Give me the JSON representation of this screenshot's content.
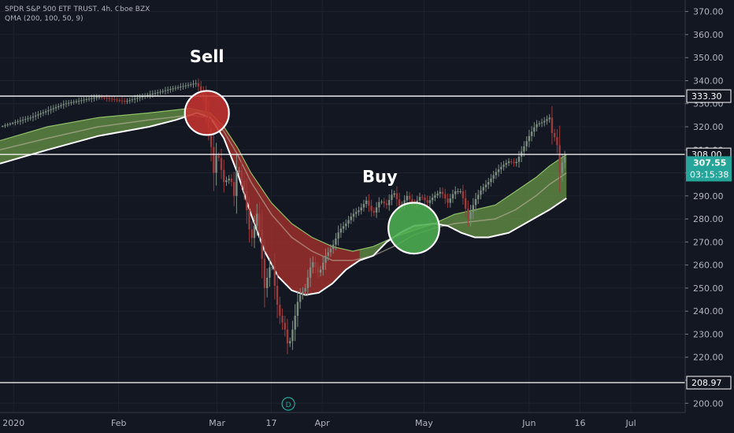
{
  "header": {
    "symbol_line": "SPDR S&P 500 ETF TRUST, 4h, Cboe BZX",
    "indicator_line": "QMA (200, 100, 50, 9)"
  },
  "colors": {
    "background": "#131722",
    "grid": "#1e222d",
    "candle_up": "#7b8c80",
    "candle_down": "#9b3b3b",
    "bull_fill": "#6b9a4a",
    "bear_fill": "#b3322e",
    "line_white": "#ffffff",
    "price_tag": "#26a69a"
  },
  "chart_data": {
    "type": "line",
    "title": "",
    "xlabel": "",
    "ylabel": "",
    "ylim": [
      196,
      375
    ],
    "yticks": [
      200,
      210,
      220,
      230,
      240,
      250,
      260,
      270,
      280,
      290,
      300,
      310,
      320,
      330,
      340,
      350,
      360,
      370
    ],
    "ytick_labels": [
      "200.00",
      "210.00",
      "220.00",
      "230.00",
      "240.00",
      "250.00",
      "260.00",
      "270.00",
      "280.00",
      "290.00",
      "300.00",
      "310.00",
      "320.00",
      "330.00",
      "340.00",
      "350.00",
      "360.00",
      "370.00"
    ],
    "xticks": [
      {
        "label": "2020",
        "day": 0
      },
      {
        "label": "Feb",
        "day": 31
      },
      {
        "label": "Mar",
        "day": 60
      },
      {
        "label": "17",
        "day": 76
      },
      {
        "label": "Apr",
        "day": 91
      },
      {
        "label": "May",
        "day": 121
      },
      {
        "label": "Jun",
        "day": 152
      },
      {
        "label": "16",
        "day": 167
      },
      {
        "label": "Jul",
        "day": 182
      }
    ],
    "x_range_days": [
      -4,
      198
    ],
    "price_path": [
      [
        -4,
        320
      ],
      [
        5,
        324
      ],
      [
        15,
        330
      ],
      [
        25,
        333
      ],
      [
        33,
        331
      ],
      [
        40,
        334
      ],
      [
        48,
        337
      ],
      [
        54,
        339
      ],
      [
        56,
        333
      ],
      [
        58,
        315
      ],
      [
        59,
        300
      ],
      [
        60,
        310
      ],
      [
        62,
        296
      ],
      [
        64,
        298
      ],
      [
        65,
        290
      ],
      [
        66,
        304
      ],
      [
        68,
        292
      ],
      [
        70,
        270
      ],
      [
        72,
        284
      ],
      [
        74,
        250
      ],
      [
        76,
        262
      ],
      [
        78,
        240
      ],
      [
        80,
        232
      ],
      [
        81,
        224
      ],
      [
        82,
        230
      ],
      [
        84,
        246
      ],
      [
        86,
        250
      ],
      [
        88,
        262
      ],
      [
        90,
        256
      ],
      [
        92,
        264
      ],
      [
        94,
        268
      ],
      [
        96,
        275
      ],
      [
        98,
        278
      ],
      [
        100,
        282
      ],
      [
        102,
        284
      ],
      [
        104,
        288
      ],
      [
        106,
        282
      ],
      [
        108,
        288
      ],
      [
        110,
        286
      ],
      [
        112,
        292
      ],
      [
        114,
        285
      ],
      [
        116,
        290
      ],
      [
        118,
        286
      ],
      [
        120,
        290
      ],
      [
        122,
        287
      ],
      [
        124,
        290
      ],
      [
        126,
        292
      ],
      [
        128,
        287
      ],
      [
        130,
        292
      ],
      [
        132,
        292
      ],
      [
        134,
        280
      ],
      [
        136,
        288
      ],
      [
        138,
        293
      ],
      [
        140,
        296
      ],
      [
        142,
        300
      ],
      [
        144,
        303
      ],
      [
        146,
        305
      ],
      [
        148,
        304
      ],
      [
        150,
        310
      ],
      [
        152,
        316
      ],
      [
        154,
        321
      ],
      [
        156,
        322
      ],
      [
        158,
        324
      ],
      [
        159,
        315
      ],
      [
        160,
        316
      ],
      [
        161,
        300
      ],
      [
        162,
        306
      ],
      [
        163,
        308
      ]
    ],
    "qma_upper": [
      [
        -4,
        314
      ],
      [
        10,
        320
      ],
      [
        25,
        324
      ],
      [
        40,
        326
      ],
      [
        52,
        328
      ],
      [
        58,
        326
      ],
      [
        62,
        320
      ],
      [
        66,
        311
      ],
      [
        70,
        300
      ],
      [
        76,
        287
      ],
      [
        82,
        278
      ],
      [
        88,
        272
      ],
      [
        94,
        268
      ],
      [
        100,
        266
      ],
      [
        106,
        268
      ],
      [
        112,
        272
      ],
      [
        118,
        275
      ],
      [
        124,
        278
      ],
      [
        130,
        282
      ],
      [
        136,
        284
      ],
      [
        142,
        286
      ],
      [
        148,
        292
      ],
      [
        154,
        298
      ],
      [
        158,
        303
      ],
      [
        163,
        308
      ]
    ],
    "qma_lower": [
      [
        -4,
        304
      ],
      [
        10,
        310
      ],
      [
        25,
        316
      ],
      [
        40,
        320
      ],
      [
        48,
        323
      ],
      [
        54,
        326
      ],
      [
        58,
        324
      ],
      [
        62,
        315
      ],
      [
        66,
        300
      ],
      [
        70,
        282
      ],
      [
        74,
        266
      ],
      [
        78,
        255
      ],
      [
        82,
        249
      ],
      [
        86,
        247
      ],
      [
        90,
        248
      ],
      [
        94,
        252
      ],
      [
        98,
        258
      ],
      [
        102,
        262
      ],
      [
        106,
        264
      ],
      [
        110,
        270
      ],
      [
        114,
        274
      ],
      [
        118,
        277
      ],
      [
        124,
        278
      ],
      [
        128,
        277
      ],
      [
        132,
        274
      ],
      [
        136,
        272
      ],
      [
        140,
        272
      ],
      [
        146,
        274
      ],
      [
        152,
        279
      ],
      [
        158,
        284
      ],
      [
        163,
        289
      ]
    ],
    "qma_mid": [
      [
        -4,
        310
      ],
      [
        10,
        315
      ],
      [
        25,
        320
      ],
      [
        40,
        323
      ],
      [
        52,
        325
      ],
      [
        58,
        324
      ],
      [
        62,
        318
      ],
      [
        66,
        308
      ],
      [
        70,
        296
      ],
      [
        76,
        282
      ],
      [
        82,
        272
      ],
      [
        88,
        266
      ],
      [
        94,
        262
      ],
      [
        100,
        262
      ],
      [
        106,
        264
      ],
      [
        112,
        268
      ],
      [
        118,
        273
      ],
      [
        124,
        276
      ],
      [
        130,
        278
      ],
      [
        136,
        279
      ],
      [
        142,
        280
      ],
      [
        148,
        284
      ],
      [
        154,
        290
      ],
      [
        158,
        295
      ],
      [
        163,
        300
      ]
    ],
    "horizontal_levels": [
      {
        "value": 333.3,
        "label": "333.30"
      },
      {
        "value": 308.0,
        "label": "308.00"
      },
      {
        "value": 208.97,
        "label": "208.97"
      }
    ],
    "last_price": {
      "value": 307.55,
      "label": "307.55",
      "countdown": "03:15:38"
    },
    "annotations": [
      {
        "text": "Sell",
        "day": 57,
        "value": 348
      },
      {
        "text": "Buy",
        "day": 108,
        "value": 296
      }
    ],
    "signals": [
      {
        "type": "sell",
        "day": 57,
        "value": 326,
        "radius_days": 6.5
      },
      {
        "type": "buy",
        "day": 118,
        "value": 276,
        "radius_days": 7.5
      }
    ],
    "event_marker": {
      "label": "D",
      "day": 81
    }
  }
}
